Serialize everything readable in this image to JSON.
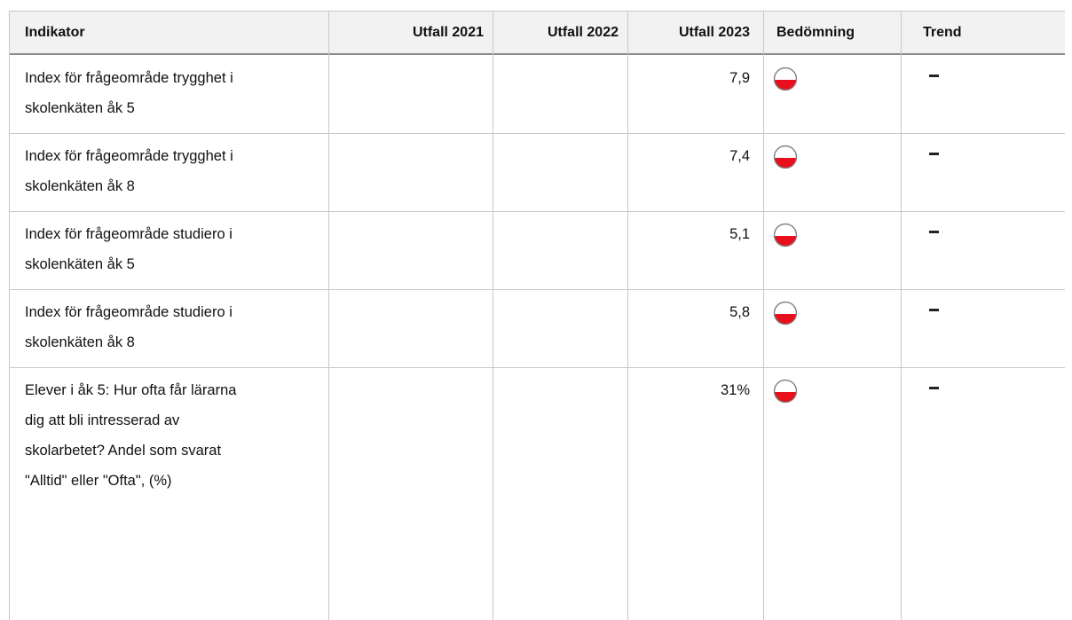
{
  "table": {
    "headers": [
      "Indikator",
      "Utfall 2021",
      "Utfall 2022",
      "Utfall 2023",
      "Bedömning",
      "Trend"
    ],
    "rows": [
      {
        "indikator": [
          "Index för frågeområde trygghet i",
          "skolenkäten åk 5"
        ],
        "utfall_2023": "7,9"
      },
      {
        "indikator": [
          "Index för frågeområde trygghet i",
          "skolenkäten åk 8"
        ],
        "utfall_2023": "7,4"
      },
      {
        "indikator": [
          "Index för frågeområde studiero i",
          "skolenkäten åk 5"
        ],
        "utfall_2023": "5,1"
      },
      {
        "indikator": [
          "Index för frågeområde studiero i",
          "skolenkäten åk 8"
        ],
        "utfall_2023": "5,8"
      },
      {
        "indikator": [
          "Elever i åk 5: Hur ofta får lärarna",
          "dig att bli intresserad av",
          "skolarbetet? Andel som svarat",
          "\"Alltid\" eller \"Ofta\", (%)"
        ],
        "utfall_2023": "31%"
      }
    ]
  }
}
